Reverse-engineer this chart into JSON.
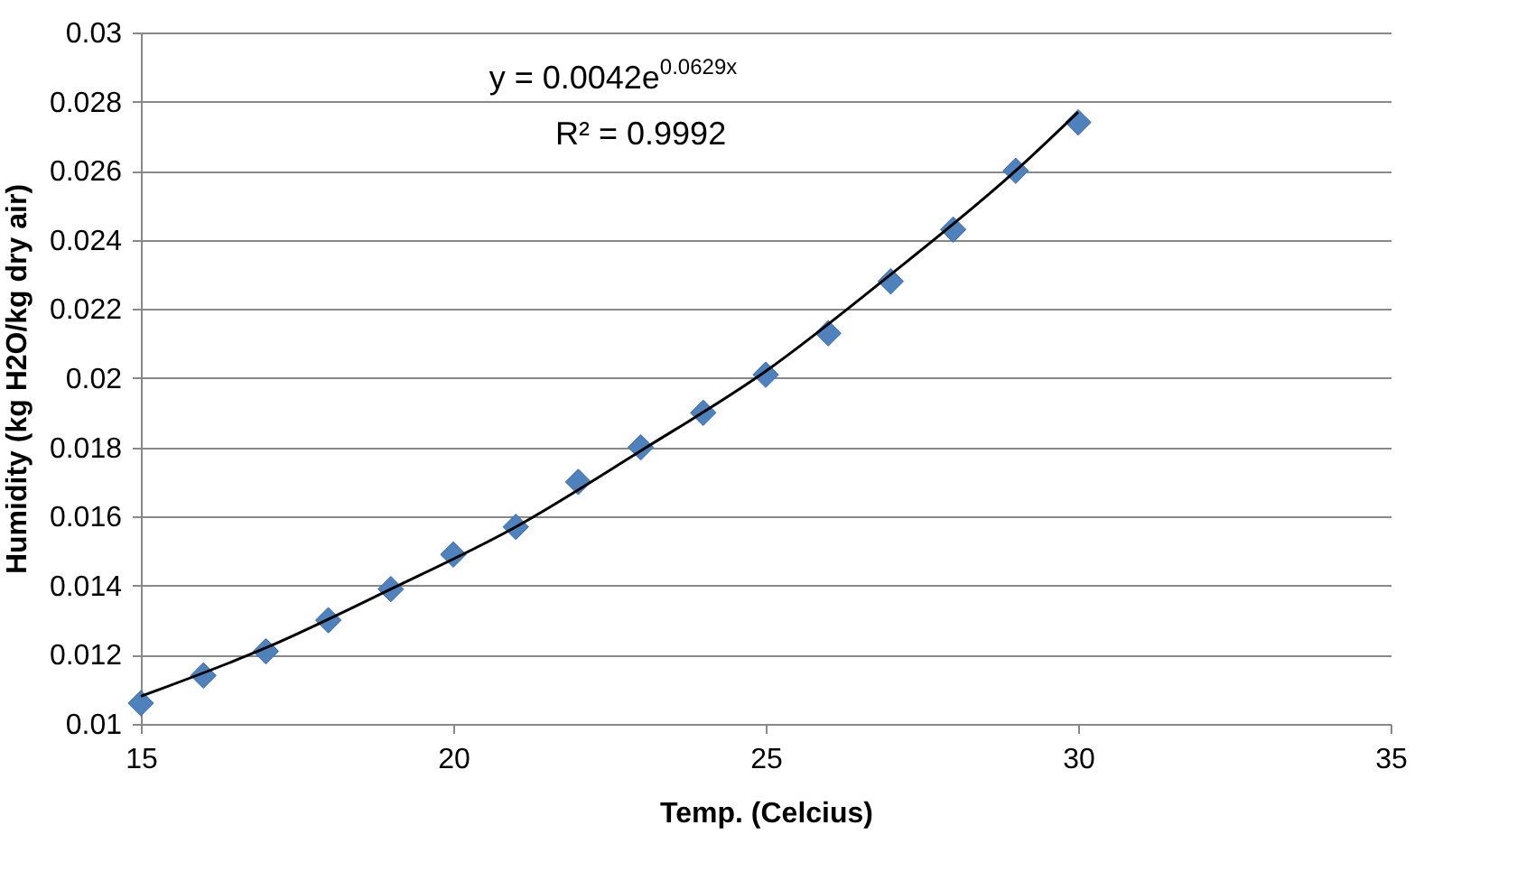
{
  "chart_data": {
    "type": "scatter",
    "xlabel": "Temp. (Celcius)",
    "ylabel": "Humidity (kg H2O/kg dry air)",
    "x": [
      15,
      16,
      17,
      18,
      19,
      20,
      21,
      22,
      23,
      24,
      25,
      26,
      27,
      28,
      29,
      30
    ],
    "series": [
      {
        "color": "#4f81bd",
        "marker": "diamond",
        "values": [
          0.0106,
          0.0114,
          0.0121,
          0.013,
          0.0139,
          0.0149,
          0.0157,
          0.017,
          0.018,
          0.019,
          0.0201,
          0.0213,
          0.0228,
          0.0243,
          0.026,
          0.0274
        ]
      },
      {
        "type": "line",
        "color": "#000000",
        "marker": "none",
        "x": [
          15,
          17,
          19,
          21,
          23,
          25,
          27,
          29,
          30
        ],
        "values": [
          0.0108,
          0.0122,
          0.0139,
          0.0157,
          0.0179,
          0.0202,
          0.023,
          0.026,
          0.0277
        ]
      }
    ],
    "xlim": [
      15,
      35
    ],
    "xticks": [
      15,
      20,
      25,
      30,
      35
    ],
    "ylim": [
      0.01,
      0.03
    ],
    "yticks": [
      0.01,
      0.012,
      0.014,
      0.016,
      0.018,
      0.02,
      0.022,
      0.024,
      0.026,
      0.028,
      0.03
    ],
    "grid": "y",
    "legend": false,
    "annotations": [
      "y = 0.0042e$^{0.0629x}$",
      "R² = 0.9992"
    ]
  }
}
